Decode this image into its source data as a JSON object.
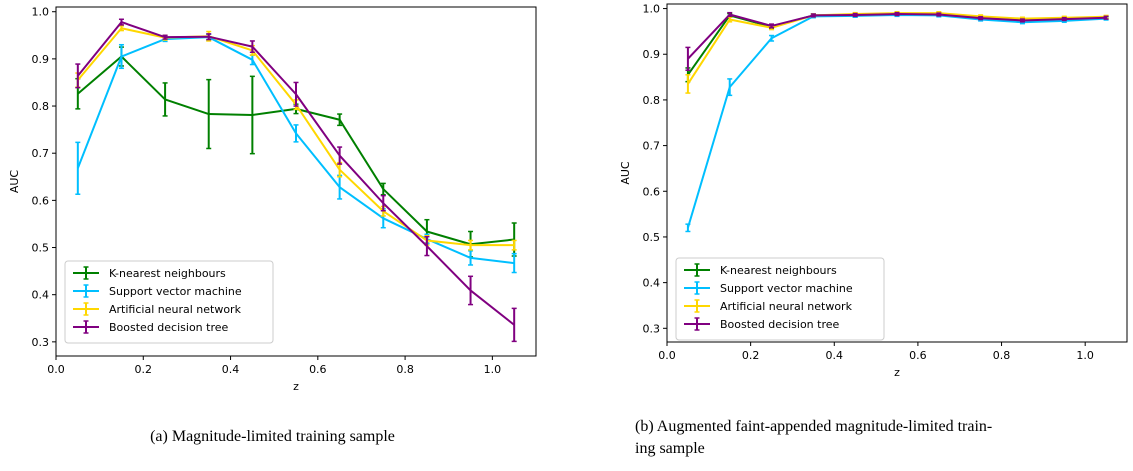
{
  "captions": {
    "a": "(a) Magnitude-limited training sample",
    "b_line1": "(b) Augmented faint-appended magnitude-limited train-",
    "b_line2": "ing sample"
  },
  "chart_data": [
    {
      "type": "line",
      "title": "",
      "xlabel": "z",
      "ylabel": "AUC",
      "xlim": [
        0.0,
        1.1
      ],
      "ylim": [
        0.27,
        1.01
      ],
      "xticks": [
        0.0,
        0.2,
        0.4,
        0.6,
        0.8,
        1.0
      ],
      "yticks": [
        0.3,
        0.4,
        0.5,
        0.6,
        0.7,
        0.8,
        0.9,
        1.0
      ],
      "tick_labels_x": [
        "0.0",
        "0.2",
        "0.4",
        "0.6",
        "0.8",
        "1.0"
      ],
      "tick_labels_y": [
        "0.3",
        "0.4",
        "0.5",
        "0.6",
        "0.7",
        "0.8",
        "0.9",
        "1.0"
      ],
      "legend_position": "lower-left",
      "x": [
        0.05,
        0.15,
        0.25,
        0.35,
        0.45,
        0.55,
        0.65,
        0.75,
        0.85,
        0.95,
        1.05
      ],
      "series": [
        {
          "name": "K-nearest neighbours",
          "color": "#008000",
          "values": [
            0.826,
            0.905,
            0.814,
            0.783,
            0.781,
            0.794,
            0.771,
            0.624,
            0.534,
            0.507,
            0.517
          ],
          "errors": [
            0.032,
            0.02,
            0.035,
            0.073,
            0.082,
            0.01,
            0.012,
            0.012,
            0.025,
            0.027,
            0.035
          ]
        },
        {
          "name": "Support vector machine",
          "color": "#00bfff",
          "values": [
            0.668,
            0.905,
            0.942,
            0.946,
            0.898,
            0.742,
            0.628,
            0.562,
            0.518,
            0.478,
            0.467
          ],
          "errors": [
            0.055,
            0.025,
            0.005,
            0.006,
            0.01,
            0.018,
            0.025,
            0.02,
            0.01,
            0.015,
            0.02
          ]
        },
        {
          "name": "Artificial neural network",
          "color": "#ffd700",
          "values": [
            0.855,
            0.965,
            0.945,
            0.948,
            0.918,
            0.803,
            0.665,
            0.577,
            0.515,
            0.505,
            0.505
          ],
          "errors": [
            0.015,
            0.005,
            0.005,
            0.01,
            0.01,
            0.01,
            0.015,
            0.01,
            0.01,
            0.01,
            0.01
          ]
        },
        {
          "name": "Boosted decision tree",
          "color": "#800080",
          "values": [
            0.864,
            0.978,
            0.946,
            0.947,
            0.926,
            0.825,
            0.695,
            0.594,
            0.503,
            0.409,
            0.336
          ],
          "errors": [
            0.025,
            0.006,
            0.004,
            0.006,
            0.012,
            0.025,
            0.018,
            0.016,
            0.02,
            0.03,
            0.035
          ]
        }
      ]
    },
    {
      "type": "line",
      "title": "",
      "xlabel": "z",
      "ylabel": "AUC",
      "xlim": [
        0.0,
        1.1
      ],
      "ylim": [
        0.27,
        1.01
      ],
      "xticks": [
        0.0,
        0.2,
        0.4,
        0.6,
        0.8,
        1.0
      ],
      "yticks": [
        0.3,
        0.4,
        0.5,
        0.6,
        0.7,
        0.8,
        0.9,
        1.0
      ],
      "tick_labels_x": [
        "0.0",
        "0.2",
        "0.4",
        "0.6",
        "0.8",
        "1.0"
      ],
      "tick_labels_y": [
        "0.3",
        "0.4",
        "0.5",
        "0.6",
        "0.7",
        "0.8",
        "0.9",
        "1.0"
      ],
      "legend_position": "lower-left",
      "x": [
        0.05,
        0.15,
        0.25,
        0.35,
        0.45,
        0.55,
        0.65,
        0.75,
        0.85,
        0.95,
        1.05
      ],
      "series": [
        {
          "name": "K-nearest neighbours",
          "color": "#008000",
          "values": [
            0.855,
            0.985,
            0.96,
            0.985,
            0.985,
            0.988,
            0.988,
            0.98,
            0.975,
            0.978,
            0.98
          ],
          "errors": [
            0.015,
            0.004,
            0.004,
            0.003,
            0.003,
            0.003,
            0.003,
            0.003,
            0.003,
            0.003,
            0.003
          ]
        },
        {
          "name": "Support vector machine",
          "color": "#00bfff",
          "values": [
            0.52,
            0.828,
            0.935,
            0.983,
            0.984,
            0.986,
            0.985,
            0.976,
            0.97,
            0.973,
            0.978
          ],
          "errors": [
            0.008,
            0.018,
            0.006,
            0.003,
            0.003,
            0.003,
            0.003,
            0.003,
            0.003,
            0.003,
            0.003
          ]
        },
        {
          "name": "Artificial neural network",
          "color": "#ffd700",
          "values": [
            0.835,
            0.976,
            0.958,
            0.985,
            0.988,
            0.99,
            0.99,
            0.983,
            0.978,
            0.98,
            0.982
          ],
          "errors": [
            0.02,
            0.005,
            0.004,
            0.003,
            0.003,
            0.003,
            0.003,
            0.003,
            0.003,
            0.003,
            0.003
          ]
        },
        {
          "name": "Boosted decision tree",
          "color": "#800080",
          "values": [
            0.89,
            0.987,
            0.962,
            0.985,
            0.986,
            0.988,
            0.987,
            0.979,
            0.974,
            0.977,
            0.98
          ],
          "errors": [
            0.025,
            0.004,
            0.004,
            0.003,
            0.003,
            0.003,
            0.003,
            0.003,
            0.003,
            0.003,
            0.003
          ]
        }
      ]
    }
  ]
}
